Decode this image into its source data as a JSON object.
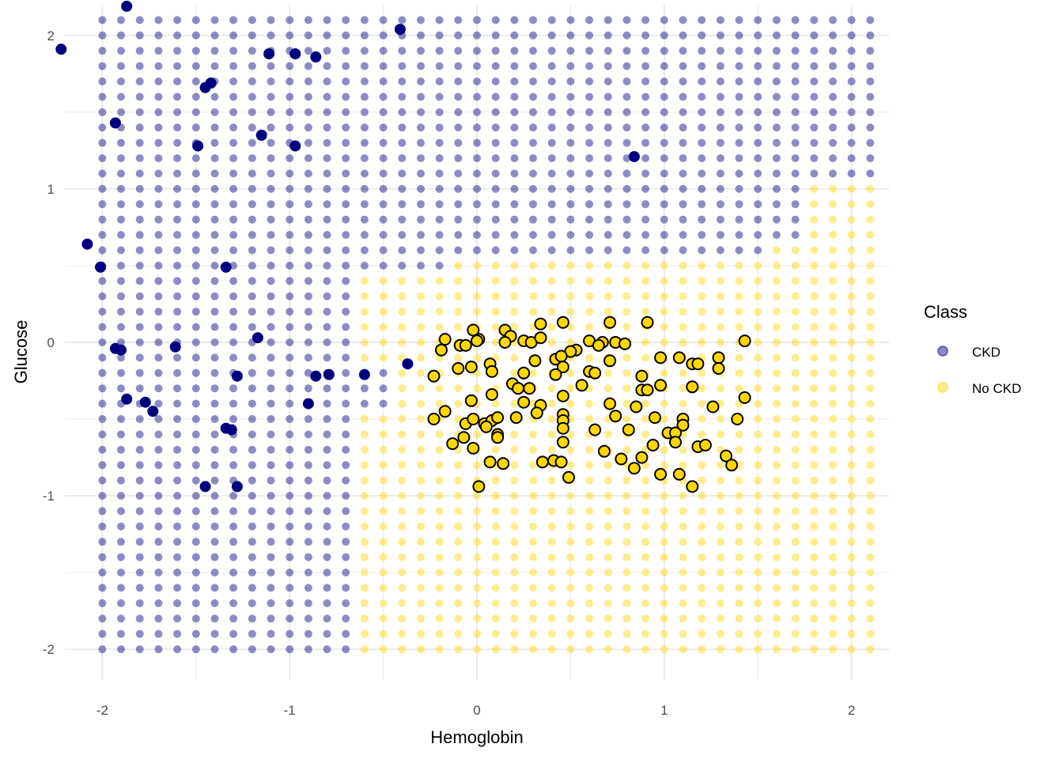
{
  "chart_data": {
    "type": "scatter",
    "title": "",
    "xlabel": "Hemoglobin",
    "ylabel": "Glucose",
    "xlim": [
      -2.2,
      2.2
    ],
    "ylim": [
      -2.2,
      2.2
    ],
    "x_ticks": [
      -2,
      -1,
      0,
      1,
      2
    ],
    "y_ticks": [
      -2,
      -1,
      0,
      1,
      2
    ],
    "x_tick_labels": [
      "-2",
      "-1",
      "0",
      "1",
      "2"
    ],
    "y_tick_labels": [
      "-2",
      "-1",
      "0",
      "1",
      "2"
    ],
    "grid": true,
    "legend": {
      "title": "Class",
      "position": "right",
      "entries": [
        {
          "label": "CKD",
          "color": "#00007f"
        },
        {
          "label": "No CKD",
          "color": "#ffd700"
        }
      ]
    },
    "colors": {
      "CKD": "#00007f",
      "No CKD": "#ffd700",
      "grid": "#ebebeb",
      "outline": "#000000"
    },
    "background_grid": {
      "description_note": "",
      "x_start": -2.0,
      "x_end": 2.1,
      "x_step": 0.1,
      "y_start": -2.0,
      "y_end": 2.1,
      "y_step": 0.1,
      "no_ckd_region_rules": [
        {
          "y_min": 0.65,
          "y_max": 1.0,
          "x_min": 1.8
        },
        {
          "y_min": 0.55,
          "y_max": 0.65,
          "x_min": 1.6
        },
        {
          "y_min": 0.45,
          "y_max": 0.55,
          "x_min": -0.1
        },
        {
          "y_min": -0.15,
          "y_max": 0.45,
          "x_min": -0.6
        },
        {
          "y_min": -0.45,
          "y_max": -0.15,
          "x_min": -0.4
        },
        {
          "y_min": -2.0,
          "y_max": -0.45,
          "x_min": -0.6
        }
      ]
    },
    "series": [
      {
        "name": "CKD",
        "points": [
          [
            -2.22,
            1.91
          ],
          [
            -1.87,
            2.19
          ],
          [
            -0.41,
            2.04
          ],
          [
            -1.11,
            1.88
          ],
          [
            -0.97,
            1.88
          ],
          [
            -0.86,
            1.86
          ],
          [
            -1.45,
            1.66
          ],
          [
            -1.42,
            1.69
          ],
          [
            -1.93,
            1.43
          ],
          [
            -1.15,
            1.35
          ],
          [
            -1.49,
            1.28
          ],
          [
            -0.97,
            1.28
          ],
          [
            0.84,
            1.21
          ],
          [
            -2.08,
            0.64
          ],
          [
            -2.01,
            0.49
          ],
          [
            -1.34,
            0.49
          ],
          [
            -1.17,
            0.03
          ],
          [
            -1.61,
            -0.03
          ],
          [
            -1.93,
            -0.04
          ],
          [
            -1.9,
            -0.05
          ],
          [
            -0.37,
            -0.14
          ],
          [
            -1.28,
            -0.22
          ],
          [
            -0.86,
            -0.22
          ],
          [
            -0.79,
            -0.21
          ],
          [
            -0.6,
            -0.21
          ],
          [
            -1.87,
            -0.37
          ],
          [
            -1.77,
            -0.39
          ],
          [
            -1.73,
            -0.45
          ],
          [
            -0.9,
            -0.4
          ],
          [
            -1.34,
            -0.56
          ],
          [
            -1.31,
            -0.57
          ],
          [
            -1.45,
            -0.94
          ],
          [
            -1.28,
            -0.94
          ]
        ]
      },
      {
        "name": "No CKD",
        "points": [
          [
            -0.02,
            0.08
          ],
          [
            0.15,
            0.08
          ],
          [
            0.34,
            0.12
          ],
          [
            0.46,
            0.13
          ],
          [
            0.71,
            0.13
          ],
          [
            0.91,
            0.13
          ],
          [
            -0.17,
            0.02
          ],
          [
            0.01,
            0.02
          ],
          [
            0.0,
            0.01
          ],
          [
            0.18,
            0.04
          ],
          [
            0.25,
            0.01
          ],
          [
            0.29,
            0.0
          ],
          [
            0.6,
            0.01
          ],
          [
            0.67,
            0.0
          ],
          [
            0.74,
            0.0
          ],
          [
            0.79,
            -0.01
          ],
          [
            1.43,
            0.01
          ],
          [
            -0.19,
            -0.05
          ],
          [
            -0.09,
            -0.02
          ],
          [
            -0.06,
            -0.02
          ],
          [
            0.15,
            0.0
          ],
          [
            0.34,
            0.03
          ],
          [
            0.53,
            -0.05
          ],
          [
            0.5,
            -0.06
          ],
          [
            0.65,
            -0.02
          ],
          [
            0.42,
            -0.11
          ],
          [
            0.45,
            -0.09
          ],
          [
            0.07,
            -0.14
          ],
          [
            0.31,
            -0.12
          ],
          [
            0.46,
            -0.16
          ],
          [
            0.71,
            -0.12
          ],
          [
            0.98,
            -0.1
          ],
          [
            1.08,
            -0.1
          ],
          [
            1.15,
            -0.14
          ],
          [
            1.18,
            -0.14
          ],
          [
            1.29,
            -0.1
          ],
          [
            -0.23,
            -0.22
          ],
          [
            -0.1,
            -0.17
          ],
          [
            -0.03,
            -0.16
          ],
          [
            0.08,
            -0.19
          ],
          [
            0.25,
            -0.2
          ],
          [
            0.42,
            -0.21
          ],
          [
            0.6,
            -0.19
          ],
          [
            0.63,
            -0.2
          ],
          [
            0.88,
            -0.22
          ],
          [
            1.29,
            -0.17
          ],
          [
            0.19,
            -0.27
          ],
          [
            0.22,
            -0.3
          ],
          [
            0.28,
            -0.3
          ],
          [
            0.56,
            -0.28
          ],
          [
            0.88,
            -0.31
          ],
          [
            0.91,
            -0.31
          ],
          [
            0.98,
            -0.28
          ],
          [
            1.15,
            -0.29
          ],
          [
            -0.03,
            -0.38
          ],
          [
            0.08,
            -0.34
          ],
          [
            0.25,
            -0.39
          ],
          [
            0.34,
            -0.41
          ],
          [
            0.46,
            -0.35
          ],
          [
            0.71,
            -0.4
          ],
          [
            0.85,
            -0.42
          ],
          [
            1.26,
            -0.42
          ],
          [
            1.43,
            -0.36
          ],
          [
            -0.17,
            -0.45
          ],
          [
            -0.23,
            -0.5
          ],
          [
            -0.06,
            -0.53
          ],
          [
            -0.02,
            -0.5
          ],
          [
            0.04,
            -0.53
          ],
          [
            0.08,
            -0.51
          ],
          [
            0.11,
            -0.49
          ],
          [
            0.21,
            -0.49
          ],
          [
            0.32,
            -0.46
          ],
          [
            0.46,
            -0.47
          ],
          [
            0.46,
            -0.51
          ],
          [
            0.74,
            -0.48
          ],
          [
            0.95,
            -0.49
          ],
          [
            1.1,
            -0.5
          ],
          [
            1.39,
            -0.5
          ],
          [
            0.05,
            -0.55
          ],
          [
            0.46,
            -0.56
          ],
          [
            0.63,
            -0.57
          ],
          [
            0.81,
            -0.57
          ],
          [
            1.1,
            -0.54
          ],
          [
            1.02,
            -0.59
          ],
          [
            1.06,
            -0.59
          ],
          [
            -0.07,
            -0.62
          ],
          [
            0.11,
            -0.6
          ],
          [
            0.11,
            -0.62
          ],
          [
            -0.13,
            -0.66
          ],
          [
            -0.02,
            -0.69
          ],
          [
            0.46,
            -0.65
          ],
          [
            0.68,
            -0.71
          ],
          [
            0.94,
            -0.67
          ],
          [
            1.06,
            -0.65
          ],
          [
            1.18,
            -0.68
          ],
          [
            1.22,
            -0.67
          ],
          [
            0.07,
            -0.78
          ],
          [
            0.14,
            -0.79
          ],
          [
            0.35,
            -0.78
          ],
          [
            0.41,
            -0.77
          ],
          [
            0.45,
            -0.78
          ],
          [
            0.77,
            -0.76
          ],
          [
            0.84,
            -0.82
          ],
          [
            0.88,
            -0.75
          ],
          [
            1.33,
            -0.74
          ],
          [
            1.36,
            -0.8
          ],
          [
            0.49,
            -0.88
          ],
          [
            0.98,
            -0.86
          ],
          [
            1.08,
            -0.86
          ],
          [
            1.15,
            -0.94
          ],
          [
            0.01,
            -0.94
          ]
        ]
      }
    ]
  }
}
